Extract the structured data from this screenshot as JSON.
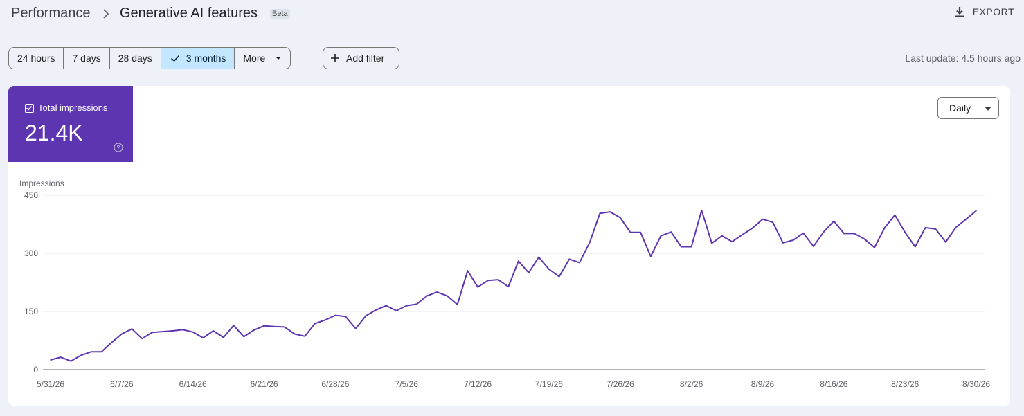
{
  "header": {
    "breadcrumb_root": "Performance",
    "title": "Generative AI features",
    "badge": "Beta",
    "export_label": "EXPORT"
  },
  "toolbar": {
    "ranges": [
      {
        "label": "24 hours",
        "active": false
      },
      {
        "label": "7 days",
        "active": false
      },
      {
        "label": "28 days",
        "active": false
      },
      {
        "label": "3 months",
        "active": true
      },
      {
        "label": "More",
        "active": false
      }
    ],
    "add_filter_label": "Add filter",
    "last_update": "Last update: 4.5 hours ago"
  },
  "metric": {
    "label": "Total impressions",
    "value": "21.4K",
    "checked": true,
    "color": "#5e35b1"
  },
  "granularity": {
    "selected": "Daily"
  },
  "colors": {
    "accent": "#5e35b1",
    "active_range_bg": "#c2e7ff",
    "page_bg": "#eef1f8"
  },
  "chart_data": {
    "type": "line",
    "ylabel": "Impressions",
    "ylim": [
      0,
      450
    ],
    "yticks": [
      0,
      150,
      300,
      450
    ],
    "xtick_labels": [
      "5/31/26",
      "6/7/26",
      "6/14/26",
      "6/21/26",
      "6/28/26",
      "7/5/26",
      "7/12/26",
      "7/19/26",
      "7/26/26",
      "8/2/26",
      "8/9/26",
      "8/16/26",
      "8/23/26",
      "8/30/26"
    ],
    "grid": true,
    "series": [
      {
        "name": "Total impressions",
        "color": "#5e35b1",
        "x_start": "5/31/26",
        "x_end": "8/30/26",
        "values": [
          25,
          32,
          22,
          37,
          46,
          46,
          70,
          92,
          105,
          80,
          96,
          98,
          100,
          103,
          97,
          82,
          100,
          83,
          114,
          85,
          102,
          113,
          111,
          110,
          92,
          86,
          119,
          128,
          140,
          137,
          106,
          139,
          154,
          165,
          152,
          165,
          169,
          190,
          200,
          190,
          168,
          255,
          213,
          230,
          232,
          214,
          280,
          250,
          290,
          259,
          240,
          285,
          276,
          328,
          403,
          407,
          392,
          354,
          354,
          292,
          345,
          355,
          317,
          317,
          411,
          326,
          345,
          330,
          348,
          365,
          388,
          380,
          327,
          334,
          352,
          318,
          355,
          383,
          351,
          351,
          337,
          315,
          366,
          399,
          354,
          317,
          366,
          363,
          329,
          367,
          388,
          410
        ]
      }
    ]
  }
}
